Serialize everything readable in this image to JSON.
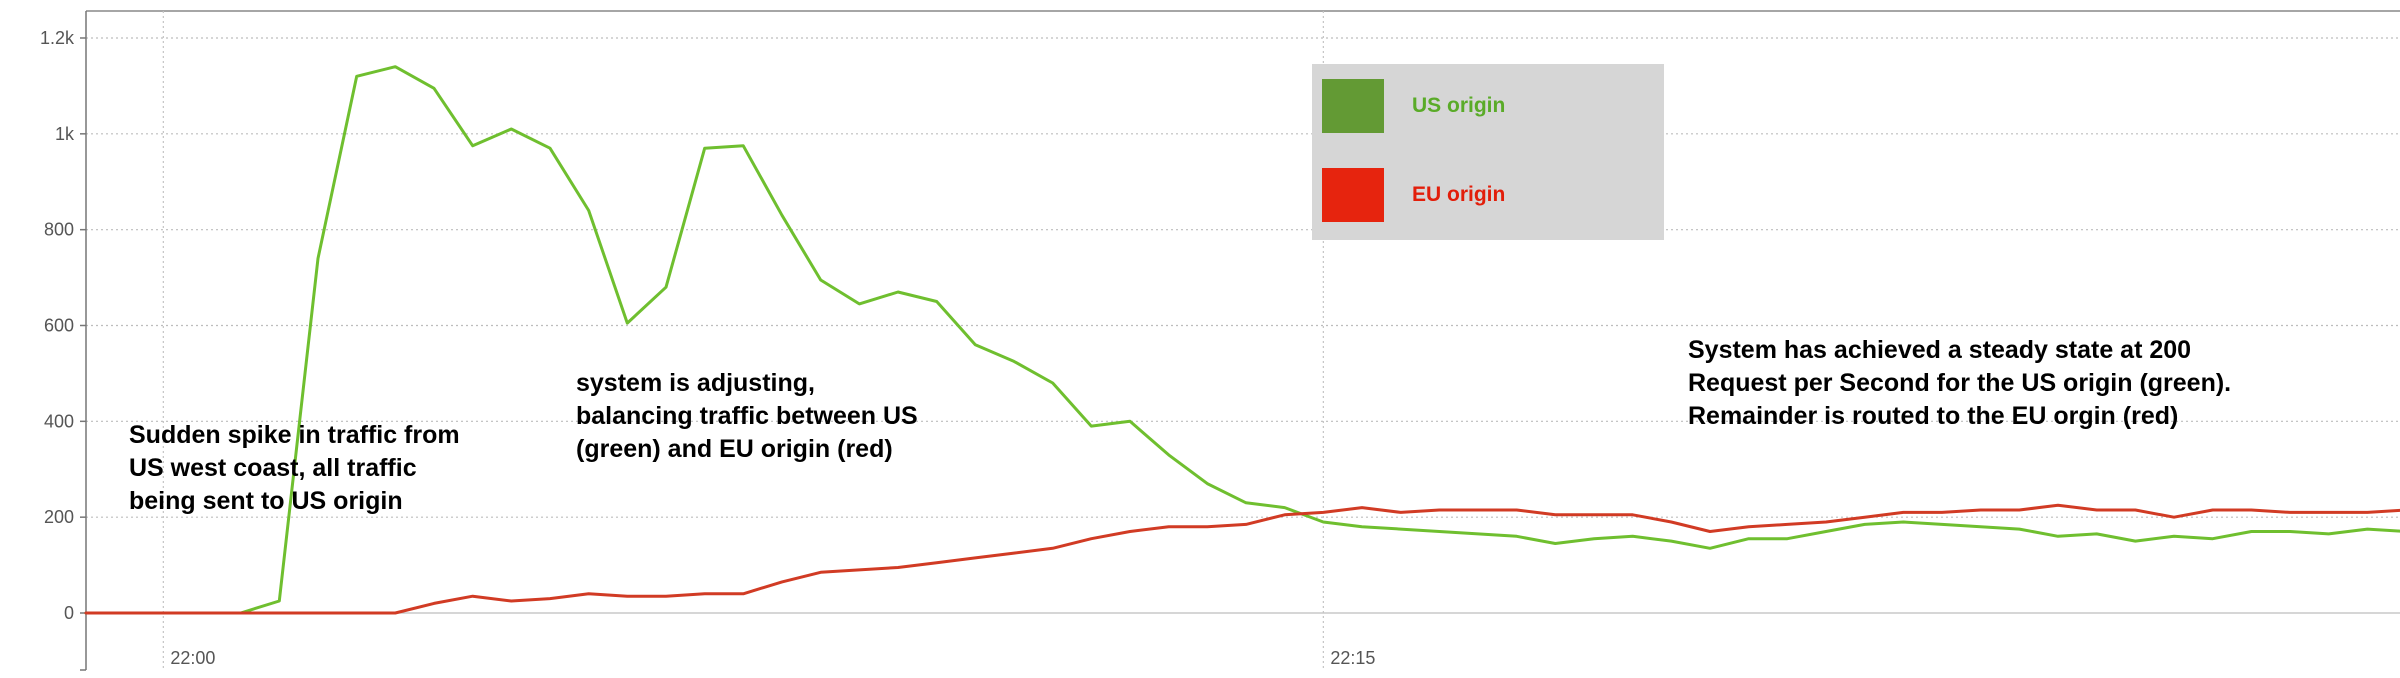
{
  "chart_data": {
    "type": "line",
    "title": "",
    "xlabel": "",
    "ylabel": "",
    "ylim": [
      -120,
      1240
    ],
    "y_ticks": [
      {
        "value": 1200,
        "label": "1.2k"
      },
      {
        "value": 1000,
        "label": "1k"
      },
      {
        "value": 800,
        "label": "800"
      },
      {
        "value": 600,
        "label": "600"
      },
      {
        "value": 400,
        "label": "400"
      },
      {
        "value": 200,
        "label": "200"
      },
      {
        "value": 0,
        "label": "0"
      }
    ],
    "x_ticks": [
      {
        "value": "22:00",
        "label": "22:00"
      },
      {
        "value": "22:15",
        "label": "22:15"
      }
    ],
    "x": [
      "21:59:00",
      "21:59:30",
      "22:00:00",
      "22:00:30",
      "22:01:00",
      "22:01:30",
      "22:02:00",
      "22:02:30",
      "22:03:00",
      "22:03:30",
      "22:04:00",
      "22:04:30",
      "22:05:00",
      "22:05:30",
      "22:06:00",
      "22:06:30",
      "22:07:00",
      "22:07:30",
      "22:08:00",
      "22:08:30",
      "22:09:00",
      "22:09:30",
      "22:10:00",
      "22:10:30",
      "22:11:00",
      "22:11:30",
      "22:12:00",
      "22:12:30",
      "22:13:00",
      "22:13:30",
      "22:14:00",
      "22:14:30",
      "22:15:00",
      "22:15:30",
      "22:16:00",
      "22:16:30",
      "22:17:00",
      "22:17:30",
      "22:18:00",
      "22:18:30",
      "22:19:00",
      "22:19:30",
      "22:20:00",
      "22:20:30",
      "22:21:00",
      "22:21:30",
      "22:22:00",
      "22:22:30",
      "22:23:00",
      "22:23:30",
      "22:24:00",
      "22:24:30",
      "22:25:00",
      "22:25:30",
      "22:26:00",
      "22:26:30",
      "22:27:00",
      "22:27:30",
      "22:28:00",
      "22:28:30",
      "22:29:00"
    ],
    "series": [
      {
        "name": "US origin",
        "color": "#6fbf2f",
        "values": [
          0,
          0,
          0,
          0,
          0,
          25,
          740,
          1120,
          1140,
          1095,
          975,
          1010,
          970,
          840,
          605,
          680,
          970,
          975,
          830,
          695,
          645,
          670,
          650,
          560,
          525,
          480,
          390,
          400,
          330,
          270,
          230,
          220,
          190,
          180,
          175,
          170,
          165,
          160,
          145,
          155,
          160,
          150,
          135,
          155,
          155,
          170,
          185,
          190,
          185,
          180,
          175,
          160,
          165,
          150,
          160,
          155,
          170,
          170,
          165,
          175,
          170
        ],
        "marker": false
      },
      {
        "name": "EU origin",
        "color": "#d13b24",
        "values": [
          0,
          0,
          0,
          0,
          0,
          0,
          0,
          0,
          0,
          20,
          35,
          25,
          30,
          40,
          35,
          35,
          40,
          40,
          65,
          85,
          90,
          95,
          105,
          115,
          125,
          135,
          155,
          170,
          180,
          180,
          185,
          205,
          210,
          220,
          210,
          215,
          215,
          215,
          205,
          205,
          205,
          190,
          170,
          180,
          185,
          190,
          200,
          210,
          210,
          215,
          215,
          225,
          215,
          215,
          200,
          215,
          215,
          210,
          210,
          210,
          215
        ]
      }
    ],
    "grid": true,
    "legend": {
      "position": "top-center",
      "items": [
        {
          "label": "US origin",
          "swatch": "#639a34",
          "text_color": "#5aab28"
        },
        {
          "label": "EU origin",
          "swatch": "#e6240e",
          "text_color": "#e21e0a"
        }
      ],
      "background": "#d6d6d6"
    },
    "annotations": [
      {
        "lines": [
          "Sudden spike in traffic from",
          "US west coast, all traffic",
          "being sent to US origin"
        ]
      },
      {
        "lines": [
          "system is adjusting,",
          "balancing traffic between US",
          "(green) and EU origin (red)"
        ]
      },
      {
        "lines": [
          "System has achieved a steady state at 200",
          "Request per Second for the US origin (green).",
          "Remainder is routed to the EU orgin (red)"
        ]
      }
    ]
  }
}
